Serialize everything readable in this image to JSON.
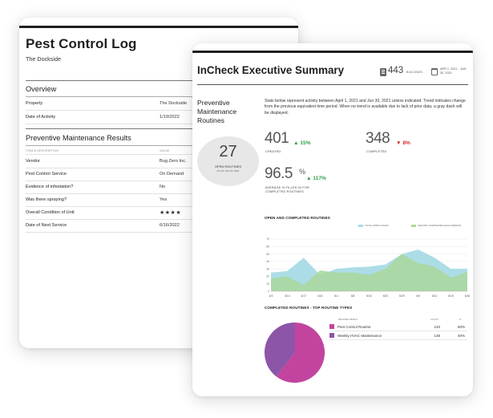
{
  "pest_log": {
    "title": "Pest Control Log",
    "subtitle": "The Dockside",
    "overview_title": "Overview",
    "overview_rows": [
      {
        "label": "Property",
        "value": "The Dockside"
      },
      {
        "label": "Date of Activity",
        "value": "1/19/2022"
      }
    ],
    "pm_results_title": "Preventive Maintenance Results",
    "col_item": "ITEM & DESCRIPTION",
    "col_value": "VALUE",
    "result_rows": [
      {
        "label": "Vendor",
        "value": "Bug Zero Inc."
      },
      {
        "label": "Pest Control Service",
        "value": "On Demand"
      },
      {
        "label": "Evidence of infestation?",
        "value": "No"
      },
      {
        "label": "Was there spraying?",
        "value": "Yes"
      },
      {
        "label": "Overall Condition of Unit",
        "value": "★★★★"
      },
      {
        "label": "Date of Next Service",
        "value": "6/16/2022"
      }
    ],
    "star_rating": 4
  },
  "exec": {
    "title": "InCheck Executive Summary",
    "buildings_count": "443",
    "buildings_label": "BUILDINGS",
    "date_range": "APR 1, 2021 - JUN 30, 2021",
    "pm_title": "Preventive Maintenance Routines",
    "intro": "Stats below represent activity between April 1, 2021 and Jun 30, 2021 unless indicated. Trend indicates change from the previous equivalent time period. When no trend is available due to lack of prior data, a gray dash will be displayed.",
    "open_routines": {
      "value": "27",
      "label": "OPEN ROUTINES",
      "sub": "AS OF JUN 30, 2021"
    },
    "created": {
      "value": "401",
      "trend": "15%",
      "label": "CREATED"
    },
    "completed": {
      "value": "348",
      "trend": "8%",
      "label": "COMPLETED"
    },
    "fill_pct": {
      "value": "96.5",
      "unit": "%",
      "trend": "117%",
      "label": "AVERAGE % FILLED IN FOR COMPLETED ROUTINES"
    },
    "chart_title": "OPEN AND COMPLETED ROUTINES",
    "pie_title": "COMPLETED ROUTINES - TOP ROUTINE TYPES",
    "table_headers": {
      "object": "RELATED OBJECT",
      "count": "COUNT",
      "pct": "%"
    },
    "table_rows": [
      {
        "name": "Pest Control Routine",
        "count": "210",
        "pct": "60%",
        "color": "#c2449e"
      },
      {
        "name": "Weekly HVAC Maintenance",
        "count": "138",
        "pct": "40%",
        "color": "#8c55a8"
      }
    ]
  },
  "chart_data": [
    {
      "type": "area",
      "title": "OPEN AND COMPLETED ROUTINES",
      "categories": [
        "4/3",
        "4/10",
        "4/17",
        "4/24",
        "5/1",
        "5/8",
        "5/15",
        "5/22",
        "5/29",
        "6/5",
        "6/12",
        "6/19",
        "6/26"
      ],
      "ylim": [
        0,
        70
      ],
      "yticks": [
        0,
        10,
        20,
        30,
        40,
        50,
        60,
        70
      ],
      "grid": true,
      "legend_position": "top-right",
      "series": [
        {
          "name": "TOTAL OPEN COUNT",
          "color": "#a8dbe6",
          "values": [
            25,
            27,
            45,
            22,
            30,
            32,
            33,
            36,
            50,
            56,
            45,
            30,
            30
          ]
        },
        {
          "name": "AMOUNT COMPLETED EACH PERIOD",
          "color": "#a9d79a",
          "values": [
            17,
            20,
            8,
            28,
            25,
            25,
            22,
            30,
            50,
            38,
            33,
            18,
            26
          ]
        }
      ]
    },
    {
      "type": "pie",
      "title": "COMPLETED ROUTINES - TOP ROUTINE TYPES",
      "categories": [
        "Pest Control Routine",
        "Weekly HVAC Maintenance"
      ],
      "values": [
        210,
        138
      ],
      "colors": [
        "#c2449e",
        "#8c55a8"
      ]
    }
  ]
}
